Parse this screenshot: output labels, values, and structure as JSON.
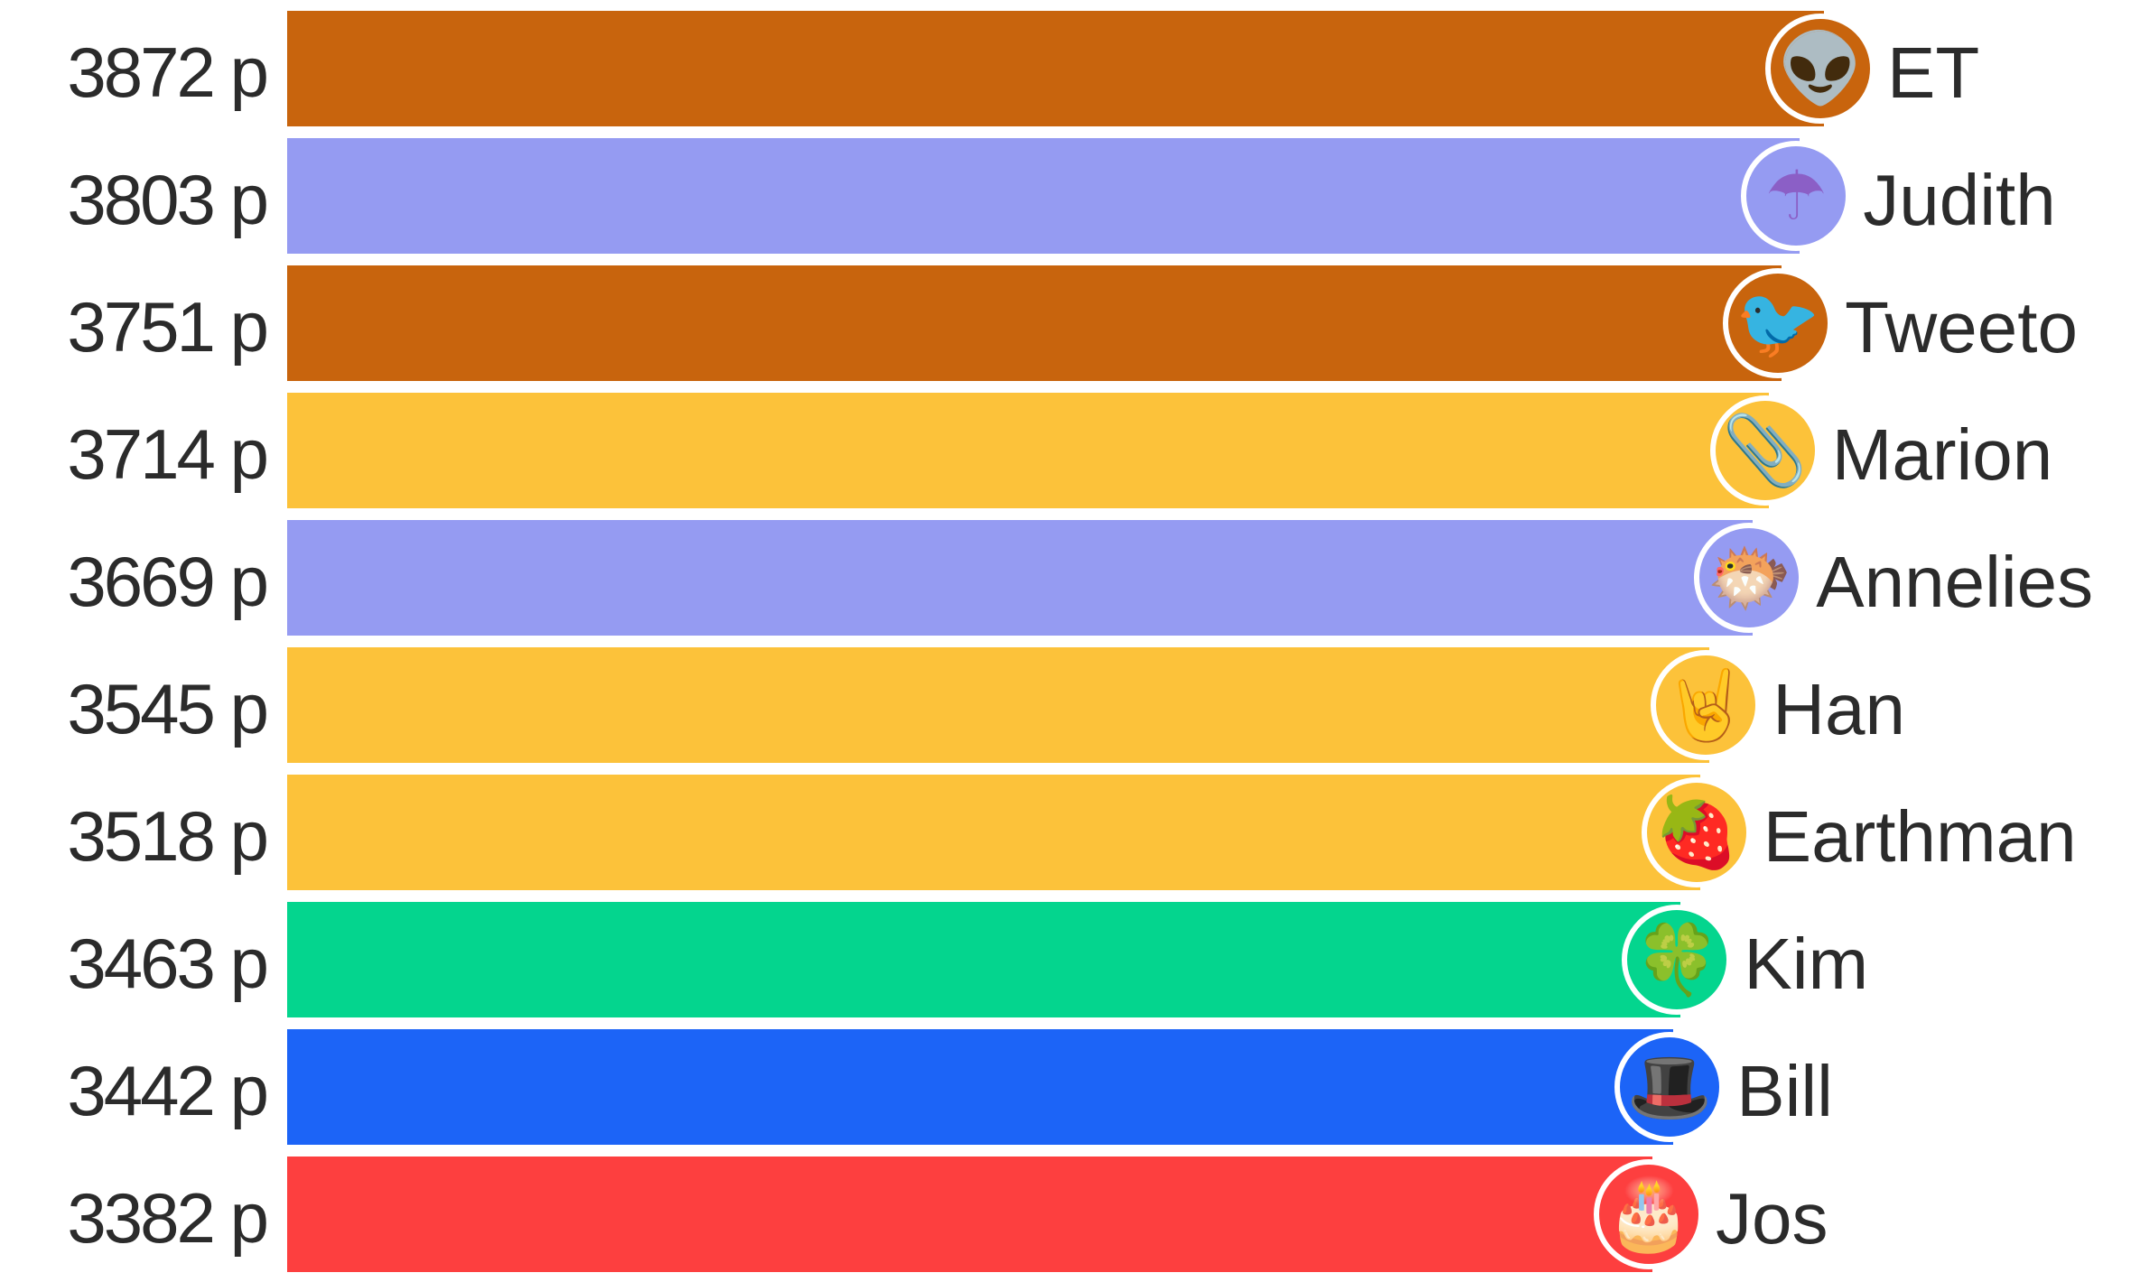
{
  "chart_data": {
    "type": "bar",
    "orientation": "horizontal",
    "unit_suffix": "p",
    "categories": [
      "ET",
      "Judith",
      "Tweeto",
      "Marion",
      "Annelies",
      "Han",
      "Earthman",
      "Kim",
      "Bill",
      "Jos"
    ],
    "values": [
      3872,
      3803,
      3751,
      3714,
      3669,
      3545,
      3518,
      3463,
      3442,
      3382
    ],
    "score_labels": [
      "3872 p",
      "3803 p",
      "3751 p",
      "3714 p",
      "3669 p",
      "3545 p",
      "3518 p",
      "3463 p",
      "3442 p",
      "3382 p"
    ],
    "colors": [
      "#c8640d",
      "#959bf2",
      "#c8640d",
      "#fcc23a",
      "#959bf2",
      "#fcc23a",
      "#fcc23a",
      "#04d58e",
      "#1c64f7",
      "#fd3f3f"
    ],
    "avatars": [
      "alien-icon",
      "umbrella-icon",
      "bird-icon",
      "paperclip-icon",
      "pufferfish-icon",
      "rock-hand-icon",
      "strawberry-icon",
      "four-leaf-clover-icon",
      "top-hat-icon",
      "birthday-cake-icon"
    ],
    "avatar_glyphs": [
      "👽",
      "☂",
      "🐦",
      "📎",
      "🐡",
      "🤘",
      "🍓",
      "🍀",
      "🎩",
      "🎂"
    ],
    "avatar_colors": [
      "#9aa0a6",
      "#8b5fc6",
      "#d9322f",
      "#a9b4bf",
      "#c46a3a",
      "#f4c21e",
      "#d8233a",
      "#4caf50",
      "#2b2b2b",
      "#f06b8a"
    ]
  }
}
